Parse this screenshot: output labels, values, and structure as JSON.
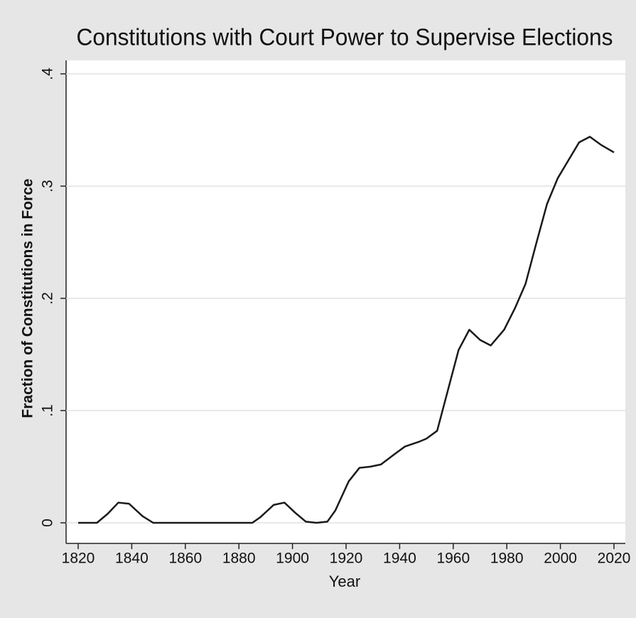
{
  "chart_data": {
    "type": "line",
    "title": "Constitutions with Court Power to Supervise Elections",
    "x_label": "Year",
    "y_label": "Fraction of Constitutions in Force",
    "x": [
      1820,
      1827,
      1831,
      1835,
      1839,
      1844,
      1848,
      1885,
      1888,
      1893,
      1897,
      1901,
      1905,
      1909,
      1913,
      1916,
      1921,
      1925,
      1929,
      1933,
      1938,
      1942,
      1947,
      1950,
      1954,
      1958,
      1962,
      1966,
      1970,
      1974,
      1979,
      1983,
      1987,
      1991,
      1995,
      1999,
      2003,
      2007,
      2011,
      2015,
      2020
    ],
    "series": [
      {
        "name": "Fraction",
        "color": "#1a1a1a",
        "values": [
          0,
          0,
          0.008,
          0.018,
          0.017,
          0.006,
          0,
          0,
          0.005,
          0.016,
          0.018,
          0.009,
          0.001,
          0,
          0.001,
          0.011,
          0.037,
          0.049,
          0.05,
          0.052,
          0.061,
          0.068,
          0.072,
          0.075,
          0.082,
          0.118,
          0.154,
          0.172,
          0.163,
          0.158,
          0.172,
          0.191,
          0.213,
          0.249,
          0.284,
          0.307,
          0.323,
          0.339,
          0.344,
          0.337,
          0.33
        ]
      }
    ],
    "xlim": [
      1820,
      2020
    ],
    "xticks": [
      1820,
      1840,
      1860,
      1880,
      1900,
      1920,
      1940,
      1960,
      1980,
      2000,
      2020
    ],
    "ylim": [
      0,
      0.4
    ],
    "yticks": [
      0,
      {
        "value": 0.1,
        "label": ".1"
      },
      {
        "value": 0.2,
        "label": ".2"
      },
      {
        "value": 0.3,
        "label": ".3"
      },
      {
        "value": 0.4,
        "label": ".4"
      }
    ],
    "grid": true
  }
}
